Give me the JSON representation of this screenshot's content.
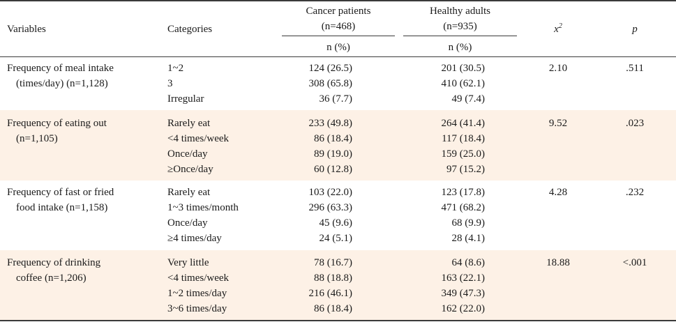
{
  "header": {
    "variables": "Variables",
    "categories": "Categories",
    "group1_name": "Cancer patients",
    "group1_n": "(n=468)",
    "group2_name": "Healthy adults",
    "group2_n": "(n=935)",
    "chi_symbol": "x",
    "chi_sup": "2",
    "p_label": "p",
    "unit1": "n (%)",
    "unit2": "n (%)"
  },
  "rows": [
    {
      "variable": [
        "Frequency of meal intake",
        "(times/day) (n=1,128)"
      ],
      "categories": [
        "1~2",
        "3",
        "Irregular"
      ],
      "cancer": [
        "124 (26.5)",
        "308 (65.8)",
        "36 (7.7)"
      ],
      "healthy": [
        "201 (30.5)",
        "410 (62.1)",
        "49 (7.4)"
      ],
      "chi2": "2.10",
      "p": ".511",
      "shaded": false
    },
    {
      "variable": [
        "Frequency of eating out",
        "(n=1,105)"
      ],
      "categories": [
        "Rarely eat",
        "<4 times/week",
        "Once/day",
        "≥Once/day"
      ],
      "cancer": [
        "233 (49.8)",
        "86 (18.4)",
        "89 (19.0)",
        "60 (12.8)"
      ],
      "healthy": [
        "264 (41.4)",
        "117 (18.4)",
        "159 (25.0)",
        "97 (15.2)"
      ],
      "chi2": "9.52",
      "p": ".023",
      "shaded": true
    },
    {
      "variable": [
        "Frequency of fast or fried",
        "food intake (n=1,158)"
      ],
      "categories": [
        "Rarely eat",
        "1~3 times/month",
        "Once/day",
        "≥4 times/day"
      ],
      "cancer": [
        "103 (22.0)",
        "296 (63.3)",
        "45 (9.6)",
        "24 (5.1)"
      ],
      "healthy": [
        "123 (17.8)",
        "471 (68.2)",
        "68 (9.9)",
        "28 (4.1)"
      ],
      "chi2": "4.28",
      "p": ".232",
      "shaded": false
    },
    {
      "variable": [
        "Frequency of drinking",
        "coffee (n=1,206)"
      ],
      "categories": [
        "Very little",
        "<4 times/week",
        "1~2 times/day",
        "3~6 times/day"
      ],
      "cancer": [
        "78 (16.7)",
        "88 (18.8)",
        "216 (46.1)",
        "86 (18.4)"
      ],
      "healthy": [
        "64 (8.6)",
        "163 (22.1)",
        "349 (47.3)",
        "162 (22.0)"
      ],
      "chi2": "18.88",
      "p": "<.001",
      "shaded": true
    }
  ]
}
